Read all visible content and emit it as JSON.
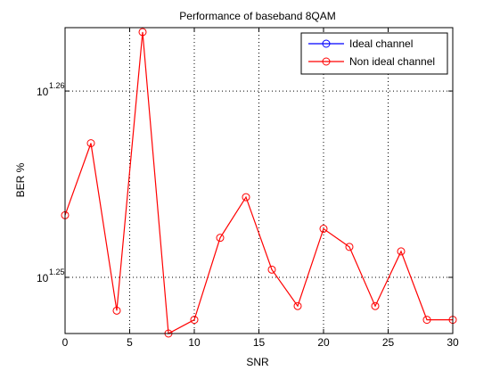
{
  "chart_data": {
    "type": "line",
    "title": "Performance of baseband 8QAM",
    "xlabel": "SNR",
    "ylabel": "BER %",
    "xlim": [
      0,
      30
    ],
    "x_ticks": [
      0,
      5,
      10,
      15,
      20,
      25,
      30
    ],
    "y_scale": "log",
    "ylim": [
      17.66,
      18.34
    ],
    "y_ticks": [
      {
        "value": 17.783,
        "base": "10",
        "exponent": "1.25"
      },
      {
        "value": 18.197,
        "base": "10",
        "exponent": "1.26"
      }
    ],
    "grid": true,
    "grid_style": "dotted",
    "legend_position": "top-right",
    "series": [
      {
        "name": "Ideal channel",
        "color": "#0000ff",
        "marker": "circle",
        "x": [],
        "y": []
      },
      {
        "name": "Non ideal channel",
        "color": "#ff0000",
        "marker": "circle",
        "x": [
          0,
          2,
          4,
          6,
          8,
          10,
          12,
          14,
          16,
          18,
          20,
          22,
          24,
          26,
          28,
          30
        ],
        "y": [
          17.92,
          18.08,
          17.71,
          18.33,
          17.66,
          17.69,
          17.87,
          17.96,
          17.8,
          17.72,
          17.89,
          17.85,
          17.72,
          17.84,
          17.69,
          17.69
        ]
      }
    ]
  }
}
